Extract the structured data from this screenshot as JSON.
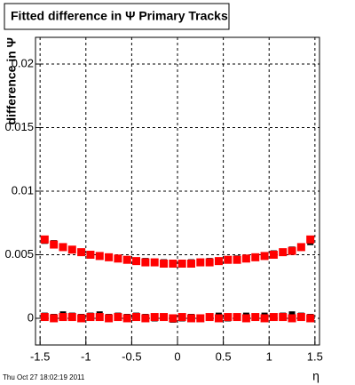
{
  "chart_data": {
    "type": "scatter",
    "title": "Fitted difference in Ψ   Primary Tracks",
    "y_label": "difference in Ψ",
    "x_label": "η",
    "timestamp": "Thu Oct 27 18:02:19 2011",
    "x": [
      -1.45,
      -1.35,
      -1.25,
      -1.15,
      -1.05,
      -0.95,
      -0.85,
      -0.75,
      -0.65,
      -0.55,
      -0.45,
      -0.35,
      -0.25,
      -0.15,
      -0.05,
      0.05,
      0.15,
      0.25,
      0.35,
      0.45,
      0.55,
      0.65,
      0.75,
      0.85,
      0.95,
      1.05,
      1.15,
      1.25,
      1.35,
      1.45
    ],
    "series": [
      {
        "color": "#000000",
        "values": [
          0.0061,
          0.0059,
          0.0056,
          0.0054,
          0.0052,
          0.005,
          0.0049,
          0.0048,
          0.0047,
          0.0046,
          0.0045,
          0.0045,
          0.0044,
          0.0044,
          0.0043,
          0.0043,
          0.0044,
          0.0044,
          0.0045,
          0.0045,
          0.0046,
          0.0047,
          0.0047,
          0.0048,
          0.0049,
          0.0051,
          0.0052,
          0.0054,
          0.0056,
          0.006
        ]
      },
      {
        "color": "#000000",
        "values": [
          0.0002,
          0.0001,
          0.0003,
          0.0002,
          0.0001,
          0.0002,
          0.0003,
          0.0001,
          0.0002,
          0.0001,
          0.0002,
          0.0001,
          0.0,
          0.0001,
          -0.0001,
          0.0,
          0.0001,
          0.0,
          0.0001,
          0.0002,
          0.0,
          0.0001,
          0.0002,
          0.0001,
          0.0002,
          0.0001,
          0.0002,
          0.0003,
          0.0002,
          0.0001
        ]
      },
      {
        "color": "#ff0000",
        "values": [
          0.0062,
          0.0058,
          0.0056,
          0.0054,
          0.0052,
          0.005,
          0.0049,
          0.0048,
          0.0047,
          0.0046,
          0.0045,
          0.0044,
          0.0044,
          0.0043,
          0.0043,
          0.0043,
          0.0043,
          0.0044,
          0.0044,
          0.0045,
          0.0046,
          0.0046,
          0.0047,
          0.0048,
          0.0049,
          0.005,
          0.0052,
          0.0053,
          0.0056,
          0.0062
        ]
      },
      {
        "color": "#ff0000",
        "values": [
          0.0001,
          0.0,
          0.0001,
          0.0001,
          0.0,
          0.0001,
          0.0001,
          0.0,
          0.0001,
          0.0,
          0.0001,
          0.0,
          0.0001,
          0.0001,
          0.0,
          0.0001,
          0.0,
          0.0,
          0.0001,
          0.0,
          0.0001,
          0.0001,
          0.0,
          0.0001,
          0.0,
          0.0001,
          0.0001,
          0.0,
          0.0001,
          0.0
        ]
      }
    ],
    "xlim": [
      -1.55,
      1.55
    ],
    "xticks": [
      -1.5,
      -1,
      -0.5,
      0,
      0.5,
      1,
      1.5
    ],
    "ylim": [
      -0.0021,
      0.0221
    ],
    "yticks": [
      0,
      0.005,
      0.01,
      0.015,
      0.02
    ],
    "grid": true
  }
}
